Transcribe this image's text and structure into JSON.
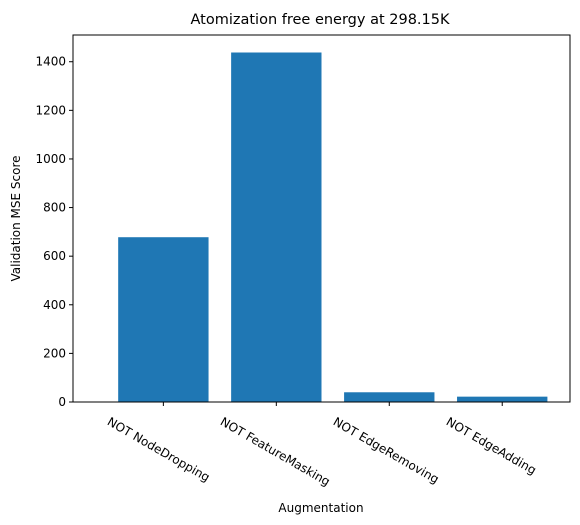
{
  "chart_data": {
    "type": "bar",
    "title": "Atomization free energy at 298.15K",
    "xlabel": "Augmentation",
    "ylabel": "Validation MSE Score",
    "categories": [
      "NOT NodeDropping",
      "NOT FeatureMasking",
      "NOT EdgeRemoving",
      "NOT EdgeAdding"
    ],
    "values": [
      678,
      1438,
      40,
      22
    ],
    "ylim": [
      0,
      1510
    ],
    "yticks": [
      0,
      200,
      400,
      600,
      800,
      1000,
      1200,
      1400
    ],
    "bar_color": "#1f77b4",
    "grid": false,
    "legend": "none"
  }
}
